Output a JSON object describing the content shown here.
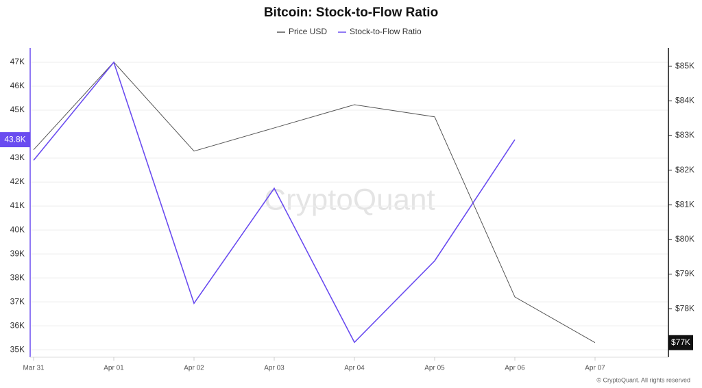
{
  "chart_data": {
    "type": "line",
    "title": "Bitcoin: Stock-to-Flow Ratio",
    "categories": [
      "Mar 31",
      "Apr 01",
      "Apr 02",
      "Apr 03",
      "Apr 04",
      "Apr 05",
      "Apr 06",
      "Apr 07"
    ],
    "series": [
      {
        "name": "Price USD",
        "color": "#555555",
        "axis": "y2",
        "values": [
          82590,
          85120,
          82550,
          83220,
          83890,
          83540,
          78340,
          77020
        ]
      },
      {
        "name": "Stock-to-Flow Ratio",
        "color": "#6a4cf0",
        "axis": "y",
        "values": [
          42910,
          47000,
          36940,
          41740,
          35310,
          38710,
          43770,
          null
        ]
      }
    ],
    "ylim": [
      34690,
      47600
    ],
    "yticks": [
      {
        "value": 35000,
        "label": "35K"
      },
      {
        "value": 36000,
        "label": "36K"
      },
      {
        "value": 37000,
        "label": "37K"
      },
      {
        "value": 38000,
        "label": "38K"
      },
      {
        "value": 39000,
        "label": "39K"
      },
      {
        "value": 40000,
        "label": "40K"
      },
      {
        "value": 41000,
        "label": "41K"
      },
      {
        "value": 42000,
        "label": "42K"
      },
      {
        "value": 43000,
        "label": "43K"
      },
      {
        "value": 45000,
        "label": "45K"
      },
      {
        "value": 46000,
        "label": "46K"
      },
      {
        "value": 47000,
        "label": "47K"
      }
    ],
    "y2lim": [
      76600,
      85530
    ],
    "y2ticks": [
      {
        "value": 78000,
        "label": "$78K"
      },
      {
        "value": 79000,
        "label": "$79K"
      },
      {
        "value": 80000,
        "label": "$80K"
      },
      {
        "value": 81000,
        "label": "$81K"
      },
      {
        "value": 82000,
        "label": "$82K"
      },
      {
        "value": 83000,
        "label": "$83K"
      },
      {
        "value": 84000,
        "label": "$84K"
      },
      {
        "value": 85000,
        "label": "$85K"
      }
    ],
    "current_value_labels": [
      {
        "axis": "y",
        "value": 43770,
        "label": "43.8K"
      },
      {
        "axis": "y2",
        "value": 77020,
        "label": "$77K"
      }
    ],
    "grid": true,
    "legend": "top",
    "watermark": "CryptoQuant",
    "footer": "© CryptoQuant. All rights reserved"
  }
}
